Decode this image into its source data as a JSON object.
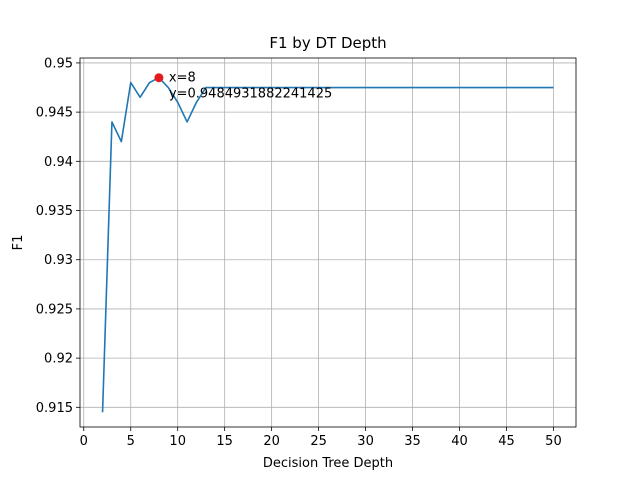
{
  "chart_data": {
    "type": "line",
    "title": "F1 by DT Depth",
    "xlabel": "Decision Tree Depth",
    "ylabel": "F1",
    "xlim": [
      -0.4,
      52.4
    ],
    "ylim": [
      0.913,
      0.9505
    ],
    "xticks": [
      0,
      5,
      10,
      15,
      20,
      25,
      30,
      35,
      40,
      45,
      50
    ],
    "xtick_labels": [
      "0",
      "5",
      "10",
      "15",
      "20",
      "25",
      "30",
      "35",
      "40",
      "45",
      "50"
    ],
    "yticks": [
      0.915,
      0.92,
      0.925,
      0.93,
      0.935,
      0.94,
      0.945,
      0.95
    ],
    "ytick_labels": [
      "0.915",
      "0.92",
      "0.925",
      "0.93",
      "0.935",
      "0.94",
      "0.945",
      "0.95"
    ],
    "grid": true,
    "series": [
      {
        "color": "#1f77b4",
        "x": [
          2,
          3,
          4,
          5,
          6,
          7,
          8,
          9,
          10,
          11,
          12,
          13,
          14,
          15,
          16,
          17,
          18,
          19,
          20,
          21,
          22,
          23,
          24,
          25,
          26,
          27,
          28,
          29,
          30,
          31,
          32,
          33,
          34,
          35,
          36,
          37,
          38,
          39,
          40,
          41,
          42,
          43,
          44,
          45,
          46,
          47,
          48,
          49,
          50
        ],
        "y": [
          0.9145,
          0.944,
          0.942,
          0.948,
          0.9465,
          0.948,
          0.9485,
          0.9475,
          0.946,
          0.944,
          0.946,
          0.9475,
          0.9475,
          0.9475,
          0.9475,
          0.9475,
          0.9475,
          0.9475,
          0.9475,
          0.9475,
          0.9475,
          0.9475,
          0.9475,
          0.9475,
          0.9475,
          0.9475,
          0.9475,
          0.9475,
          0.9475,
          0.9475,
          0.9475,
          0.9475,
          0.9475,
          0.9475,
          0.9475,
          0.9475,
          0.9475,
          0.9475,
          0.9475,
          0.9475,
          0.9475,
          0.9475,
          0.9475,
          0.9475,
          0.9475,
          0.9475,
          0.9475,
          0.9475,
          0.9475
        ]
      }
    ],
    "highlight": {
      "x": 8,
      "y": 0.9484931882241425,
      "color": "#e41a1c",
      "label_x": "x=8",
      "label_y": "y=0.9484931882241425"
    }
  }
}
